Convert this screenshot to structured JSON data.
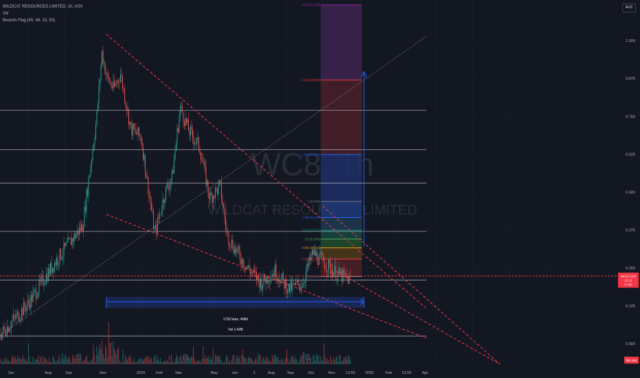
{
  "legend": {
    "symbol_line": "WILDCAT RESOURCES LIMITED, 1h, ASX",
    "vol_label": "Vol",
    "pattern_label": "Bearish Flag (40, 48, 15, 50)"
  },
  "currency_button": "AUD",
  "watermark": {
    "ticker": "WC8, 1h",
    "name": "WILDCAT RESOURCES LIMITED"
  },
  "colors": {
    "background": "#131722",
    "up": "#26a69a",
    "down": "#ef5350",
    "trendline": "#f23645",
    "horizontal": "#d1d4dc",
    "measure": "#2962ff"
  },
  "chart_data": {
    "type": "line",
    "title": "WILDCAT RESOURCES LIMITED, 1h, ASX",
    "xlabel": "",
    "ylabel": "",
    "ylim": [
      -0.12,
      1.12
    ],
    "x_ticks": [
      "Jun",
      "Aug",
      "Sep",
      "Nov",
      "2024",
      "Feb",
      "Mar",
      "May",
      "Jun",
      "3",
      "Aug",
      "Sep",
      "Oct",
      "Nov",
      "13:00",
      "2025",
      "Feb",
      "13:00",
      "Apr"
    ],
    "y_ticks": [
      "1.000",
      "0.875",
      "0.750",
      "0.625",
      "0.500",
      "0.375",
      "0.250",
      "0.125",
      "0.000"
    ],
    "y_tick_values": [
      1.0,
      0.875,
      0.75,
      0.625,
      0.5,
      0.375,
      0.25,
      0.125,
      0.0
    ],
    "price_series": {
      "name": "",
      "x": [
        0,
        40,
        80,
        120,
        140,
        148,
        155,
        165,
        175,
        190,
        205,
        225,
        240,
        250,
        262,
        275,
        290,
        305,
        320,
        330,
        345,
        360,
        380,
        400,
        420,
        440,
        455,
        470,
        490,
        510
      ],
      "y": [
        0.03,
        0.13,
        0.27,
        0.39,
        0.74,
        0.96,
        0.88,
        0.84,
        0.89,
        0.71,
        0.68,
        0.36,
        0.5,
        0.55,
        0.78,
        0.7,
        0.65,
        0.48,
        0.52,
        0.36,
        0.3,
        0.25,
        0.2,
        0.24,
        0.18,
        0.2,
        0.3,
        0.27,
        0.23,
        0.21
      ]
    },
    "horizontal_levels": [
      0.77,
      0.64,
      0.53,
      0.37,
      0.21,
      0.025
    ],
    "fib_levels": [
      {
        "label": "3.618 (1.118)",
        "value": 1.118,
        "color": "#9c27b0"
      },
      {
        "label": "2.618 (0.870)",
        "value": 0.87,
        "color": "#f23645"
      },
      {
        "label": "1.618 (0.624)",
        "value": 0.624,
        "color": "#2962ff"
      },
      {
        "label": "1 (0.469)",
        "value": 0.469,
        "color": "#787b86"
      },
      {
        "label": "0.786 (0.416)",
        "value": 0.416,
        "color": "#2962ff"
      },
      {
        "label": "0.618 (0.374)",
        "value": 0.374,
        "color": "#089981"
      },
      {
        "label": "0.5 (0.345)",
        "value": 0.345,
        "color": "#4caf50"
      },
      {
        "label": "0.382 (0.316)",
        "value": 0.316,
        "color": "#ff9800"
      },
      {
        "label": "0.236 (0.279)",
        "value": 0.279,
        "color": "#f23645"
      },
      {
        "label": "0 (0.221)",
        "value": 0.221,
        "color": "#787b86"
      }
    ],
    "last_price": {
      "label": "WC8",
      "value": "0.220",
      "line": 0.223
    },
    "price_scale_tags": [
      "22:11",
      "0.145"
    ],
    "bottom_tag": "380.46K",
    "measure": {
      "bars": "1732 bars, 408d",
      "vol": "Vol 1.42B"
    }
  }
}
